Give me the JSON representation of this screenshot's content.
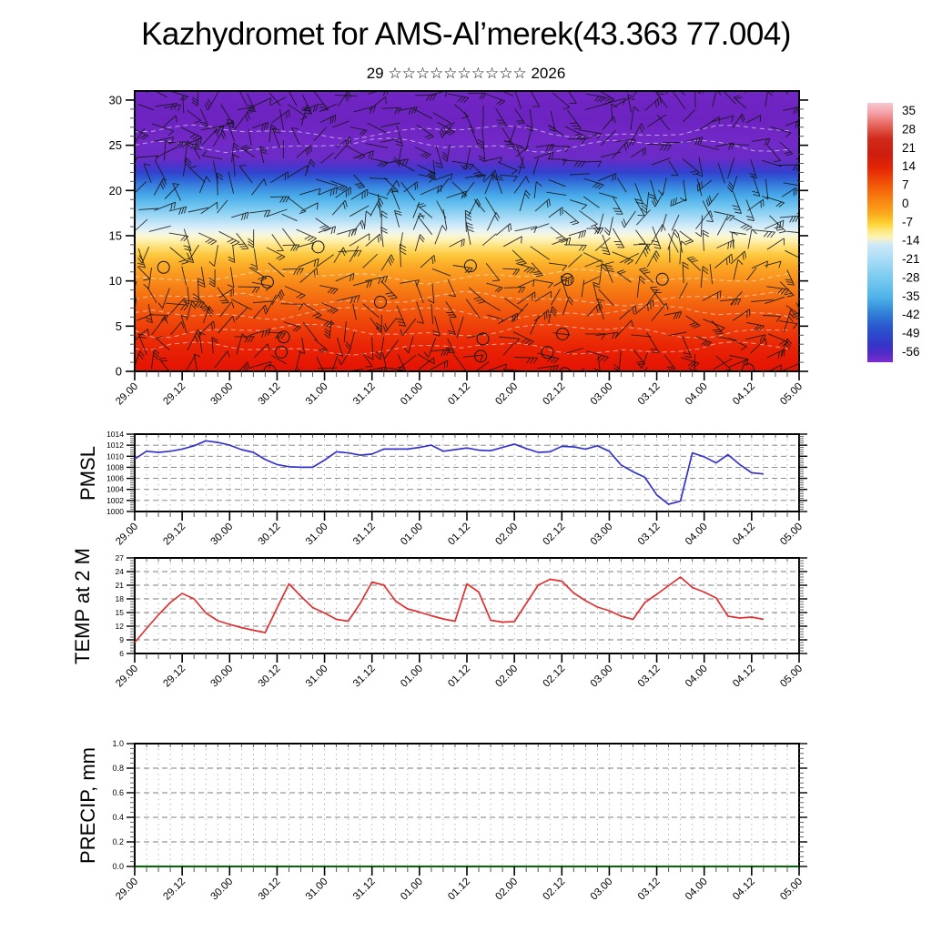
{
  "header": {
    "title": "Kazhydromet for AMS-Al’merek(43.363 77.004)",
    "subtitle": "29 ☆☆☆☆☆☆☆☆☆☆ 2026"
  },
  "time_axis": {
    "labels": [
      "29.00",
      "29.12",
      "30.00",
      "30.12",
      "31.00",
      "31.12",
      "01.00",
      "01.12",
      "02.00",
      "02.12",
      "03.00",
      "03.12",
      "04.00",
      "04.12",
      "05.00"
    ],
    "major_step_hours": 12,
    "minor_step_hours": 3,
    "total_hours": 168
  },
  "chart_data": [
    {
      "id": "temp-height-section",
      "type": "heatmap",
      "label": "",
      "description": "Time-height cross section 0-30 km: shaded air temperature (deg C) with wind barb overlay",
      "y_ticks": [
        "0",
        "5",
        "10",
        "15",
        "20",
        "25",
        "30"
      ],
      "ylim": [
        0,
        31
      ],
      "y_minor": 1,
      "x_ticklabels": [
        "29.00",
        "29.12",
        "30.00",
        "30.12",
        "31.00",
        "31.12",
        "01.00",
        "01.12",
        "02.00",
        "02.12",
        "03.00",
        "03.12",
        "04.00",
        "04.12",
        "05.00"
      ],
      "field_gradient": [
        [
          0.0,
          "#7126c5"
        ],
        [
          0.1,
          "#6d23c0"
        ],
        [
          0.18,
          "#7229c7"
        ],
        [
          0.24,
          "#6b2bc6"
        ],
        [
          0.265,
          "#4f33cb"
        ],
        [
          0.29,
          "#3341cd"
        ],
        [
          0.315,
          "#2f62d5"
        ],
        [
          0.345,
          "#3b8ae0"
        ],
        [
          0.375,
          "#49ace9"
        ],
        [
          0.41,
          "#6fc4ef"
        ],
        [
          0.445,
          "#9dd7f4"
        ],
        [
          0.475,
          "#c8e7f8"
        ],
        [
          0.497,
          "#e6f2f5"
        ],
        [
          0.515,
          "#f9f7da"
        ],
        [
          0.535,
          "#fdefab"
        ],
        [
          0.558,
          "#fedd74"
        ],
        [
          0.585,
          "#fcc83e"
        ],
        [
          0.615,
          "#fbb02a"
        ],
        [
          0.66,
          "#f9961e"
        ],
        [
          0.71,
          "#f67b15"
        ],
        [
          0.775,
          "#f25b0d"
        ],
        [
          0.84,
          "#ee3f09"
        ],
        [
          0.91,
          "#e92505"
        ],
        [
          1.0,
          "#e41204"
        ]
      ],
      "wind_overlay": {
        "style": "wind-barbs",
        "color": "#141414",
        "calm_circles": true
      },
      "colorbar": {
        "tick_labels": [
          "35",
          "28",
          "21",
          "14",
          "7",
          "0",
          "-7",
          "-14",
          "-21",
          "-28",
          "-35",
          "-42",
          "-49",
          "-56"
        ],
        "stops": [
          [
            0.0,
            "#f8c9ce"
          ],
          [
            0.036,
            "#f4a3aa"
          ],
          [
            0.09,
            "#e66055"
          ],
          [
            0.14,
            "#cf2a1a"
          ],
          [
            0.2,
            "#ce1d0e"
          ],
          [
            0.25,
            "#e42406"
          ],
          [
            0.32,
            "#f25a08"
          ],
          [
            0.39,
            "#f98e14"
          ],
          [
            0.43,
            "#fbab1f"
          ],
          [
            0.464,
            "#fcd232"
          ],
          [
            0.5,
            "#fdeb8e"
          ],
          [
            0.52,
            "#fdf3bc"
          ],
          [
            0.545,
            "#cfe9f8"
          ],
          [
            0.607,
            "#a6dcf5"
          ],
          [
            0.679,
            "#77c9f0"
          ],
          [
            0.75,
            "#4fb2e8"
          ],
          [
            0.79,
            "#3a92dd"
          ],
          [
            0.821,
            "#2f79d6"
          ],
          [
            0.86,
            "#2b59cf"
          ],
          [
            0.893,
            "#2b49cb"
          ],
          [
            0.93,
            "#3336c8"
          ],
          [
            0.964,
            "#4e2cc7"
          ],
          [
            1.0,
            "#7e2cd0"
          ]
        ]
      }
    },
    {
      "id": "pmsl",
      "type": "line",
      "label": "PMSL",
      "color": "#3333cc",
      "ylim": [
        1000,
        1014
      ],
      "y_ticks": [
        "1000",
        "1002",
        "1004",
        "1006",
        "1008",
        "1010",
        "1012",
        "1014"
      ],
      "y_minor": 0.4,
      "tick_font": 8.5,
      "x_start_hour": 0,
      "x_step_hours": 3,
      "values": [
        1009.5,
        1010.9,
        1010.7,
        1010.9,
        1011.3,
        1011.9,
        1012.8,
        1012.5,
        1012.0,
        1011.2,
        1010.7,
        1009.4,
        1008.5,
        1008.1,
        1008.0,
        1008.0,
        1009.3,
        1010.8,
        1010.6,
        1010.2,
        1010.4,
        1011.3,
        1011.3,
        1011.3,
        1011.6,
        1012.0,
        1010.9,
        1011.2,
        1011.5,
        1011.1,
        1011.0,
        1011.6,
        1012.2,
        1011.4,
        1010.7,
        1010.8,
        1011.8,
        1011.7,
        1011.3,
        1011.9,
        1010.9,
        1008.4,
        1007.2,
        1006.2,
        1003.0,
        1001.3,
        1001.9,
        1010.6,
        1009.9,
        1008.8,
        1010.3,
        1008.5,
        1007.0,
        1006.8
      ]
    },
    {
      "id": "temp2m",
      "type": "line",
      "label": "TEMP at 2 M",
      "color": "#e03030",
      "ylim": [
        6,
        27
      ],
      "y_ticks": [
        "6",
        "9",
        "12",
        "15",
        "18",
        "21",
        "24",
        "27"
      ],
      "y_minor": 0.6,
      "tick_font": 8.5,
      "x_start_hour": 0,
      "x_step_hours": 3,
      "values": [
        8.4,
        11.5,
        14.5,
        17.2,
        19.2,
        18.0,
        14.9,
        13.2,
        12.4,
        11.7,
        11.1,
        10.6,
        16.0,
        21.3,
        18.6,
        16.1,
        14.9,
        13.5,
        13.1,
        17.0,
        21.7,
        21.0,
        17.5,
        15.8,
        15.1,
        14.3,
        13.6,
        13.1,
        21.3,
        19.5,
        13.3,
        12.9,
        13.0,
        17.0,
        21.0,
        22.3,
        21.9,
        19.3,
        17.6,
        16.2,
        15.4,
        14.2,
        13.5,
        17.2,
        19.0,
        20.9,
        22.8,
        20.5,
        19.5,
        18.2,
        14.2,
        13.8,
        14.0,
        13.5
      ]
    },
    {
      "id": "precip",
      "type": "line",
      "label": "PRECIP, mm",
      "color": "#007700",
      "ylim": [
        0,
        1
      ],
      "y_ticks": [
        "0.0",
        "0.2",
        "0.4",
        "0.6",
        "0.8",
        "1.0"
      ],
      "y_minor": 0.04,
      "tick_font": 9,
      "x_start_hour": 0,
      "x_step_hours": 168,
      "values": [
        0,
        0
      ]
    }
  ]
}
